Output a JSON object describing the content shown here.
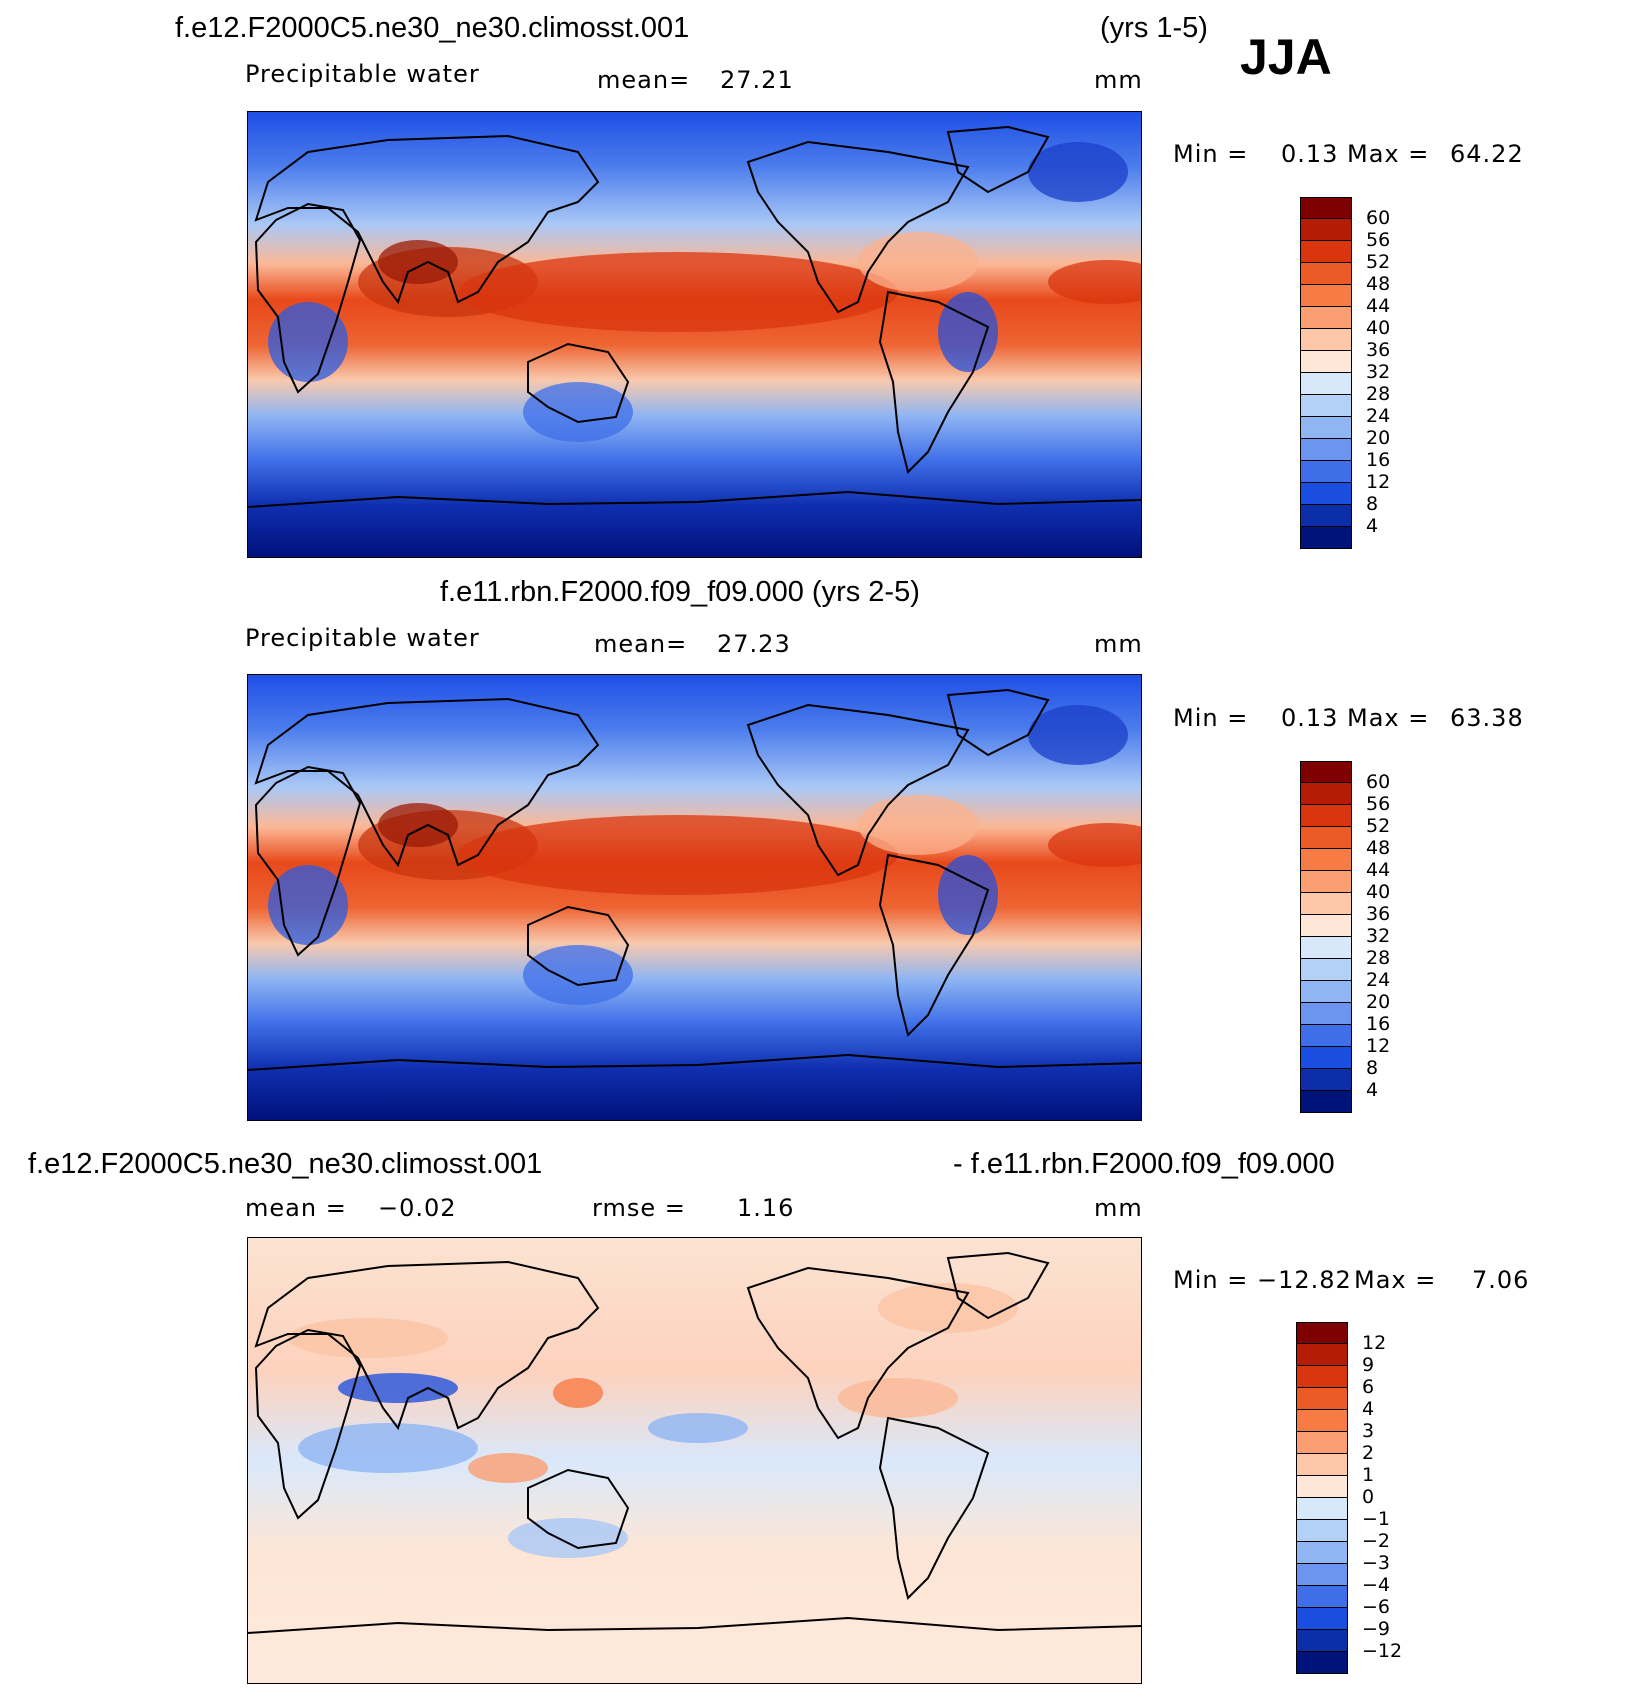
{
  "season": "JJA",
  "panels": [
    {
      "id": "p1",
      "title_left": "f.e12.F2000C5.ne30_ne30.climosst.001",
      "title_right": "(yrs 1-5)",
      "variable": "Precipitable  water",
      "mean_label": "mean=",
      "mean_value": "27.21",
      "units": "mm",
      "min_label": "Min  =",
      "min_value": "0.13",
      "max_label": "Max  =",
      "max_value": "64.22",
      "colorbar": {
        "labels": [
          "60",
          "56",
          "52",
          "48",
          "44",
          "40",
          "36",
          "32",
          "28",
          "24",
          "20",
          "16",
          "12",
          "8",
          "4"
        ],
        "colors": [
          "#7f0000",
          "#b51c06",
          "#d9360f",
          "#ec5a26",
          "#f77b45",
          "#fb9e72",
          "#fdc7a8",
          "#fee7d6",
          "#d8e8fb",
          "#b3d1f7",
          "#8fb5f3",
          "#6b95ee",
          "#3f6fe8",
          "#1a4ee0",
          "#0c2ea8",
          "#00137a"
        ]
      }
    },
    {
      "id": "p2",
      "title_left": "f.e11.rbn.F2000.f09_f09.000 (yrs 2-5)",
      "variable": "Precipitable  water",
      "mean_label": "mean=",
      "mean_value": "27.23",
      "units": "mm",
      "min_label": "Min  =",
      "min_value": "0.13",
      "max_label": "Max  =",
      "max_value": "63.38",
      "colorbar": {
        "labels": [
          "60",
          "56",
          "52",
          "48",
          "44",
          "40",
          "36",
          "32",
          "28",
          "24",
          "20",
          "16",
          "12",
          "8",
          "4"
        ],
        "colors": [
          "#7f0000",
          "#b51c06",
          "#d9360f",
          "#ec5a26",
          "#f77b45",
          "#fb9e72",
          "#fdc7a8",
          "#fee7d6",
          "#d8e8fb",
          "#b3d1f7",
          "#8fb5f3",
          "#6b95ee",
          "#3f6fe8",
          "#1a4ee0",
          "#0c2ea8",
          "#00137a"
        ]
      }
    },
    {
      "id": "p3",
      "title_left": "f.e12.F2000C5.ne30_ne30.climosst.001",
      "title_right": "- f.e11.rbn.F2000.f09_f09.000",
      "mean_label": "mean  =",
      "mean_value": "−0.02",
      "rmse_label": "rmse  =",
      "rmse_value": "1.16",
      "units": "mm",
      "min_label": "Min  =",
      "min_value": "−12.82",
      "max_label": "Max  =",
      "max_value": "7.06",
      "colorbar": {
        "labels": [
          "12",
          "9",
          "6",
          "4",
          "3",
          "2",
          "1",
          "0",
          "−1",
          "−2",
          "−3",
          "−4",
          "−6",
          "−9",
          "−12"
        ],
        "colors": [
          "#7f0000",
          "#b51c06",
          "#d9360f",
          "#ec5a26",
          "#f77b45",
          "#fb9e72",
          "#fdc7a8",
          "#fee7d6",
          "#d8e8fb",
          "#b3d1f7",
          "#8fb5f3",
          "#6b95ee",
          "#3f6fe8",
          "#1a4ee0",
          "#0c2ea8",
          "#00137a"
        ]
      }
    }
  ],
  "chart_data": [
    {
      "type": "heatmap",
      "title": "f.e12.F2000C5.ne30_ne30.climosst.001 (yrs 1-5) JJA",
      "variable": "Precipitable water",
      "units": "mm",
      "mean": 27.21,
      "min": 0.13,
      "max": 64.22,
      "contour_levels": [
        4,
        8,
        12,
        16,
        20,
        24,
        28,
        32,
        36,
        40,
        44,
        48,
        52,
        56,
        60
      ]
    },
    {
      "type": "heatmap",
      "title": "f.e11.rbn.F2000.f09_f09.000 (yrs 2-5)",
      "variable": "Precipitable water",
      "units": "mm",
      "mean": 27.23,
      "min": 0.13,
      "max": 63.38,
      "contour_levels": [
        4,
        8,
        12,
        16,
        20,
        24,
        28,
        32,
        36,
        40,
        44,
        48,
        52,
        56,
        60
      ]
    },
    {
      "type": "heatmap",
      "title": "f.e12.F2000C5.ne30_ne30.climosst.001 - f.e11.rbn.F2000.f09_f09.000",
      "units": "mm",
      "mean": -0.02,
      "rmse": 1.16,
      "min": -12.82,
      "max": 7.06,
      "contour_levels": [
        -12,
        -9,
        -6,
        -4,
        -3,
        -2,
        -1,
        0,
        1,
        2,
        3,
        4,
        6,
        9,
        12
      ]
    }
  ]
}
